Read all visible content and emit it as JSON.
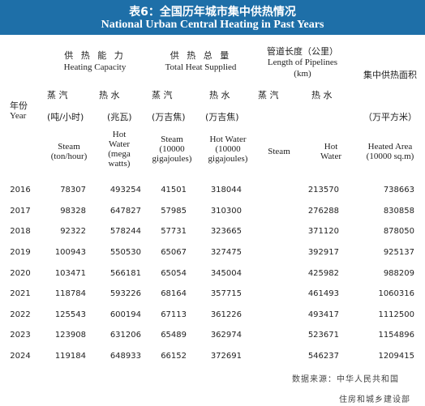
{
  "title": {
    "cn": "表6：全国历年城市集中供热情况",
    "en": "National Urban Central Heating in Past Years"
  },
  "header": {
    "year_cn": "年份",
    "year_en": "Year",
    "heating_capacity": {
      "cn": "供 热 能 力",
      "en": "Heating Capacity"
    },
    "total_heat": {
      "cn": "供 热 总 量",
      "en": "Total Heat Supplied"
    },
    "pipelines": {
      "cn": "管道长度（公里）",
      "en": "Length of Pipelines",
      "unit": "(km)"
    },
    "heated_area": {
      "cn": "集中供热面积",
      "unit_cn": "（万平方米）",
      "en_line1": "Heated Area",
      "en_line2": "(10000 sq.m)"
    },
    "steam_cn": "蒸 汽",
    "hot_water_cn": "热 水",
    "cap_steam_unit_cn": "(吨/小时)",
    "cap_water_unit_cn": "(兆瓦)",
    "tot_steam_unit_cn": "(万吉焦)",
    "tot_water_unit_cn": "(万吉焦)",
    "cap_steam_en": [
      "Steam",
      "(ton/hour)"
    ],
    "cap_water_en": [
      "Hot",
      "Water",
      "(mega",
      "watts)"
    ],
    "tot_steam_en": [
      "Steam",
      "(10000",
      "gigajoules)"
    ],
    "tot_water_en": [
      "Hot Water",
      "(10000",
      "gigajoules)"
    ],
    "pipe_steam_en": "Steam",
    "pipe_water_en": [
      "Hot",
      "Water"
    ]
  },
  "rows": [
    {
      "year": "2016",
      "cap_steam": "78307",
      "cap_water": "493254",
      "tot_steam": "41501",
      "tot_water": "318044",
      "pipe_steam": "",
      "pipe_water": "213570",
      "area": "738663"
    },
    {
      "year": "2017",
      "cap_steam": "98328",
      "cap_water": "647827",
      "tot_steam": "57985",
      "tot_water": "310300",
      "pipe_steam": "",
      "pipe_water": "276288",
      "area": "830858"
    },
    {
      "year": "2018",
      "cap_steam": "92322",
      "cap_water": "578244",
      "tot_steam": "57731",
      "tot_water": "323665",
      "pipe_steam": "",
      "pipe_water": "371120",
      "area": "878050"
    },
    {
      "year": "2019",
      "cap_steam": "100943",
      "cap_water": "550530",
      "tot_steam": "65067",
      "tot_water": "327475",
      "pipe_steam": "",
      "pipe_water": "392917",
      "area": "925137"
    },
    {
      "year": "2020",
      "cap_steam": "103471",
      "cap_water": "566181",
      "tot_steam": "65054",
      "tot_water": "345004",
      "pipe_steam": "",
      "pipe_water": "425982",
      "area": "988209"
    },
    {
      "year": "2021",
      "cap_steam": "118784",
      "cap_water": "593226",
      "tot_steam": "68164",
      "tot_water": "357715",
      "pipe_steam": "",
      "pipe_water": "461493",
      "area": "1060316"
    },
    {
      "year": "2022",
      "cap_steam": "125543",
      "cap_water": "600194",
      "tot_steam": "67113",
      "tot_water": "361226",
      "pipe_steam": "",
      "pipe_water": "493417",
      "area": "1112500"
    },
    {
      "year": "2023",
      "cap_steam": "123908",
      "cap_water": "631206",
      "tot_steam": "65489",
      "tot_water": "362974",
      "pipe_steam": "",
      "pipe_water": "523671",
      "area": "1154896"
    },
    {
      "year": "2024",
      "cap_steam": "119184",
      "cap_water": "648933",
      "tot_steam": "66152",
      "tot_water": "372691",
      "pipe_steam": "",
      "pipe_water": "546237",
      "area": "1209415"
    }
  ],
  "source": {
    "line1": "数据来源：中华人民共和国",
    "line2": "住房和城乡建设部"
  },
  "colors": {
    "title_bar": "#1e6fa8",
    "title_text": "#ffffff"
  }
}
